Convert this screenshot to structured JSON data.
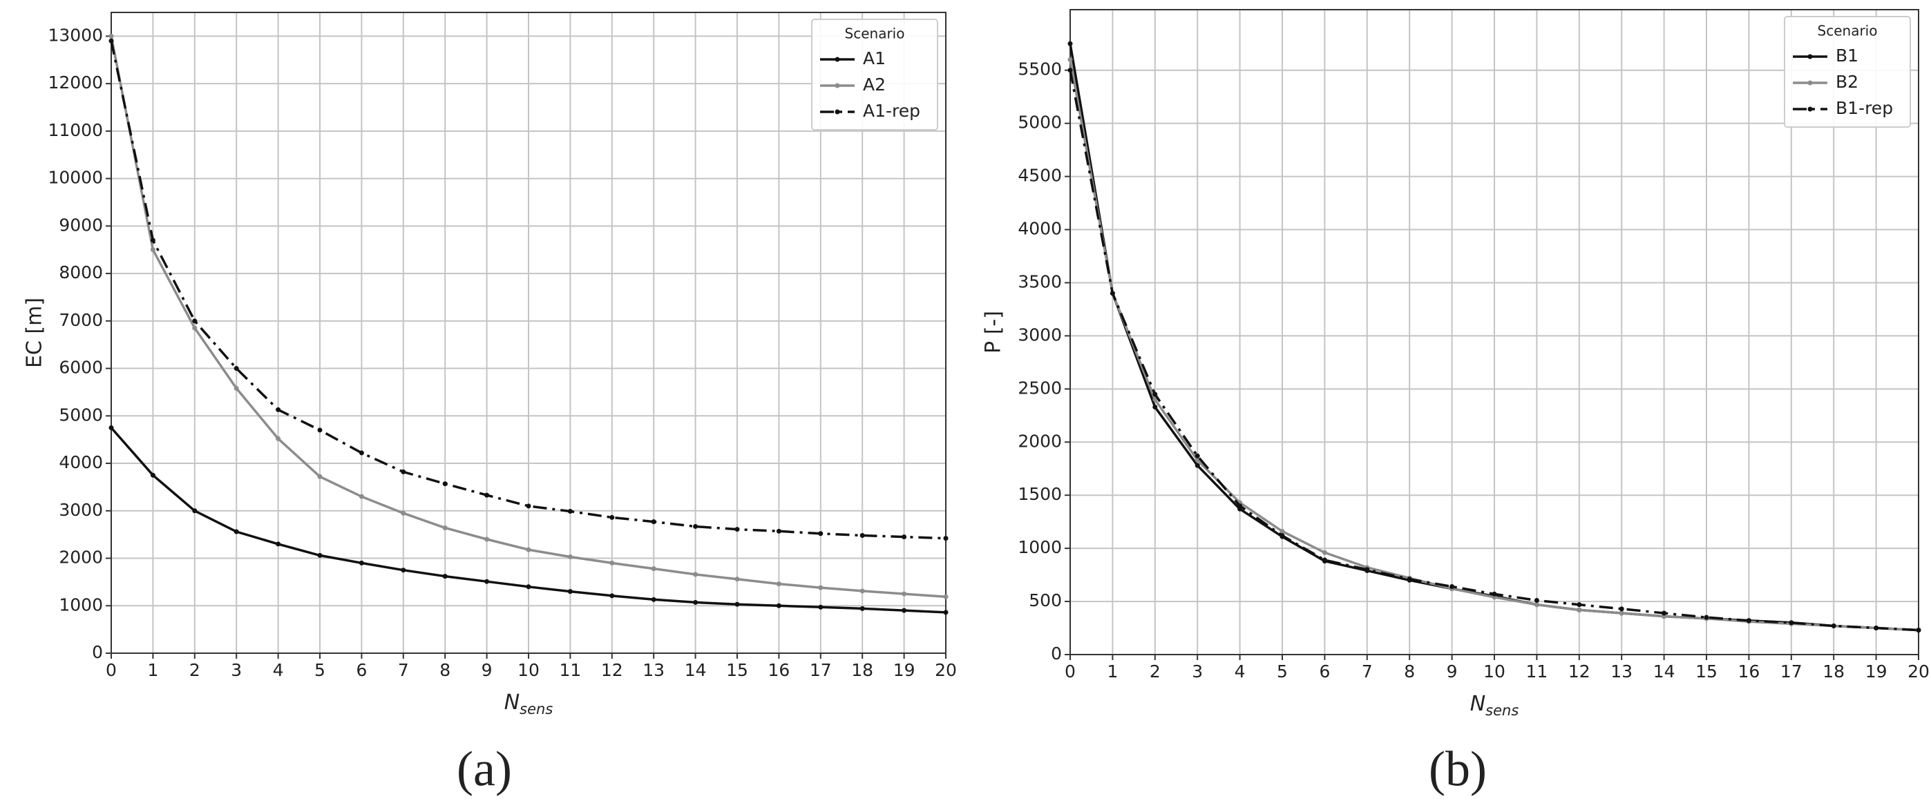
{
  "chart_data": [
    {
      "type": "line",
      "panel": "(a)",
      "ylabel": "EC [m]",
      "xlabel": "N",
      "xlabel_subscript": "sens",
      "legend_title": "Scenario",
      "legend": "upper right",
      "grid": true,
      "x": [
        0,
        1,
        2,
        3,
        4,
        5,
        6,
        7,
        8,
        9,
        10,
        11,
        12,
        13,
        14,
        15,
        16,
        17,
        18,
        19,
        20
      ],
      "xlim": [
        0,
        20
      ],
      "xticks": [
        0,
        1,
        2,
        3,
        4,
        5,
        6,
        7,
        8,
        9,
        10,
        11,
        12,
        13,
        14,
        15,
        16,
        17,
        18,
        19,
        20
      ],
      "ylim": [
        0,
        13500
      ],
      "yticks": [
        0,
        1000,
        2000,
        3000,
        4000,
        5000,
        6000,
        7000,
        8000,
        9000,
        10000,
        11000,
        12000,
        13000
      ],
      "series": [
        {
          "name": "A1",
          "color": "#111111",
          "linestyle": "solid",
          "values": [
            4750,
            3750,
            3000,
            2560,
            2300,
            2060,
            1900,
            1750,
            1620,
            1510,
            1400,
            1300,
            1210,
            1130,
            1070,
            1030,
            1000,
            970,
            940,
            900,
            860
          ]
        },
        {
          "name": "A2",
          "color": "#8c8c8c",
          "linestyle": "solid",
          "values": [
            13000,
            8500,
            6850,
            5580,
            4520,
            3720,
            3300,
            2950,
            2640,
            2400,
            2180,
            2030,
            1900,
            1780,
            1660,
            1560,
            1460,
            1380,
            1310,
            1250,
            1190
          ]
        },
        {
          "name": "A1-rep",
          "color": "#111111",
          "linestyle": "dashdot",
          "values": [
            12900,
            8700,
            7000,
            6000,
            5130,
            4700,
            4220,
            3820,
            3570,
            3330,
            3100,
            2990,
            2860,
            2770,
            2670,
            2610,
            2570,
            2520,
            2480,
            2450,
            2420
          ]
        }
      ]
    },
    {
      "type": "line",
      "panel": "(b)",
      "ylabel": "P [-]",
      "xlabel": "N",
      "xlabel_subscript": "sens",
      "legend_title": "Scenario",
      "legend": "upper right",
      "grid": true,
      "x": [
        0,
        1,
        2,
        3,
        4,
        5,
        6,
        7,
        8,
        9,
        10,
        11,
        12,
        13,
        14,
        15,
        16,
        17,
        18,
        19,
        20
      ],
      "xlim": [
        0,
        20
      ],
      "xticks": [
        0,
        1,
        2,
        3,
        4,
        5,
        6,
        7,
        8,
        9,
        10,
        11,
        12,
        13,
        14,
        15,
        16,
        17,
        18,
        19,
        20
      ],
      "ylim": [
        0,
        6070
      ],
      "yticks": [
        0,
        500,
        1000,
        1500,
        2000,
        2500,
        3000,
        3500,
        4000,
        4500,
        5000,
        5500
      ],
      "series": [
        {
          "name": "B1",
          "color": "#111111",
          "linestyle": "solid",
          "values": [
            5750,
            3400,
            2330,
            1780,
            1370,
            1110,
            880,
            790,
            700,
            620,
            550,
            470,
            420,
            390,
            360,
            340,
            320,
            300,
            270,
            250,
            230
          ]
        },
        {
          "name": "B2",
          "color": "#8c8c8c",
          "linestyle": "solid",
          "values": [
            5600,
            3400,
            2400,
            1830,
            1430,
            1160,
            960,
            820,
            720,
            620,
            540,
            470,
            420,
            390,
            360,
            340,
            310,
            290,
            270,
            250,
            230
          ]
        },
        {
          "name": "B1-rep",
          "color": "#111111",
          "linestyle": "dashdot",
          "values": [
            5500,
            3400,
            2450,
            1870,
            1400,
            1120,
            890,
            800,
            710,
            640,
            570,
            510,
            470,
            430,
            390,
            350,
            320,
            300,
            270,
            250,
            230
          ]
        }
      ]
    }
  ]
}
